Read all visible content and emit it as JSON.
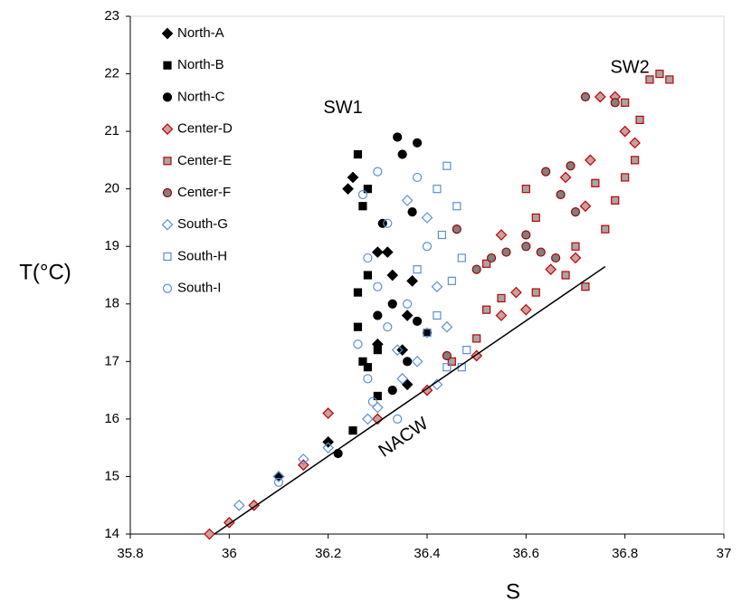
{
  "chart_data": {
    "type": "scatter",
    "x_label": "S",
    "y_label": "T(°C)",
    "xlim": [
      35.8,
      37
    ],
    "xticks": [
      35.8,
      36,
      36.2,
      36.4,
      36.6,
      36.8,
      37
    ],
    "ylim": [
      14,
      23
    ],
    "yticks": [
      14,
      15,
      16,
      17,
      18,
      19,
      20,
      21,
      22,
      23
    ],
    "grid": false,
    "legend": "upper left",
    "annotations": [
      {
        "text": "SW1",
        "x": 36.23,
        "y": 21.4
      },
      {
        "text": "SW2",
        "x": 36.81,
        "y": 22.1
      }
    ],
    "reference_line": {
      "label": "NACW",
      "x": [
        35.97,
        36.76
      ],
      "y": [
        14,
        18.65
      ],
      "color": "#000000"
    },
    "series": [
      {
        "name": "North-A",
        "marker": "diamond",
        "color": "#000000",
        "fill": "#000000",
        "x": [
          36.24,
          36.25,
          36.3,
          36.32,
          36.33,
          36.37,
          36.36,
          36.3,
          36.36,
          36.2,
          36.1,
          36.35
        ],
        "y": [
          20.0,
          20.2,
          18.9,
          18.9,
          18.5,
          18.4,
          17.8,
          17.3,
          16.6,
          15.6,
          15.0,
          17.2
        ]
      },
      {
        "name": "North-B",
        "marker": "square",
        "color": "#000000",
        "fill": "#000000",
        "x": [
          36.26,
          36.28,
          36.27,
          36.26,
          36.28,
          36.26,
          36.28,
          36.3,
          36.27,
          36.3,
          36.25
        ],
        "y": [
          20.6,
          20.0,
          19.7,
          18.2,
          18.5,
          17.6,
          16.9,
          17.2,
          17.0,
          16.4,
          15.8
        ]
      },
      {
        "name": "North-C",
        "marker": "circle",
        "color": "#000000",
        "fill": "#000000",
        "x": [
          36.34,
          36.35,
          36.38,
          36.37,
          36.31,
          36.33,
          36.38,
          36.3,
          36.36,
          36.33,
          36.4,
          36.22
        ],
        "y": [
          20.9,
          20.6,
          20.8,
          19.6,
          19.4,
          18.0,
          17.7,
          17.8,
          17.0,
          16.5,
          17.5,
          15.4
        ]
      },
      {
        "name": "Center-D",
        "marker": "diamond",
        "color": "#c00000",
        "fill": "#c9a0a0",
        "x": [
          35.96,
          36.0,
          36.05,
          36.15,
          36.3,
          36.4,
          36.5,
          36.6,
          36.55,
          36.65,
          36.7,
          36.72,
          36.75,
          36.78,
          36.8,
          36.82,
          36.73,
          36.55,
          36.58,
          36.68,
          36.2
        ],
        "y": [
          14.0,
          14.2,
          14.5,
          15.2,
          16.0,
          16.5,
          17.1,
          17.9,
          17.8,
          18.6,
          18.8,
          19.7,
          21.6,
          21.6,
          21.0,
          20.8,
          20.5,
          19.2,
          18.2,
          20.2,
          16.1
        ]
      },
      {
        "name": "Center-E",
        "marker": "square",
        "color": "#c00000",
        "fill": "#a6a6a6",
        "x": [
          36.45,
          36.5,
          36.52,
          36.55,
          36.62,
          36.68,
          36.72,
          36.76,
          36.78,
          36.8,
          36.82,
          36.8,
          36.85,
          36.87,
          36.89,
          36.83,
          36.62,
          36.7,
          36.74,
          36.6,
          36.52
        ],
        "y": [
          17.0,
          17.4,
          17.9,
          18.1,
          18.2,
          18.5,
          18.3,
          19.3,
          19.8,
          20.2,
          20.5,
          21.5,
          21.9,
          22.0,
          21.9,
          21.2,
          19.5,
          19.0,
          20.1,
          20.0,
          18.7
        ]
      },
      {
        "name": "Center-F",
        "marker": "circle",
        "color": "#a00000",
        "fill": "#808080",
        "x": [
          36.46,
          36.5,
          36.53,
          36.56,
          36.6,
          36.63,
          36.66,
          36.69,
          36.7,
          36.67,
          36.72,
          36.78,
          36.6,
          36.64,
          36.44
        ],
        "y": [
          19.3,
          18.6,
          18.8,
          18.9,
          19.0,
          18.9,
          18.8,
          20.4,
          19.6,
          19.9,
          21.6,
          21.5,
          19.2,
          20.3,
          17.1
        ]
      },
      {
        "name": "South-G",
        "marker": "diamond",
        "color": "#5b8fd6",
        "fill": "none",
        "x": [
          36.02,
          36.1,
          36.15,
          36.2,
          36.3,
          36.35,
          36.38,
          36.36,
          36.4,
          36.42,
          36.44,
          36.34,
          36.42,
          36.28
        ],
        "y": [
          14.5,
          15.0,
          15.3,
          15.5,
          16.2,
          16.7,
          17.0,
          19.8,
          19.5,
          18.3,
          17.6,
          17.2,
          16.6,
          16.0
        ]
      },
      {
        "name": "South-H",
        "marker": "square",
        "color": "#5b8fd6",
        "fill": "none",
        "x": [
          36.44,
          36.42,
          36.46,
          36.43,
          36.47,
          36.45,
          36.42,
          36.48,
          36.4,
          36.44,
          36.38,
          36.47
        ],
        "y": [
          20.4,
          20.0,
          19.7,
          19.2,
          18.8,
          18.4,
          17.8,
          17.2,
          17.5,
          16.9,
          18.6,
          16.9
        ]
      },
      {
        "name": "South-I",
        "marker": "circle",
        "color": "#5b8fd6",
        "fill": "none",
        "x": [
          36.27,
          36.3,
          36.32,
          36.28,
          36.3,
          36.26,
          36.28,
          36.29,
          36.32,
          36.36,
          36.4,
          36.38,
          36.34,
          36.1
        ],
        "y": [
          19.9,
          20.3,
          19.4,
          18.8,
          18.3,
          17.3,
          16.7,
          16.3,
          17.6,
          18.0,
          19.0,
          20.2,
          16.0,
          14.9
        ]
      }
    ]
  }
}
